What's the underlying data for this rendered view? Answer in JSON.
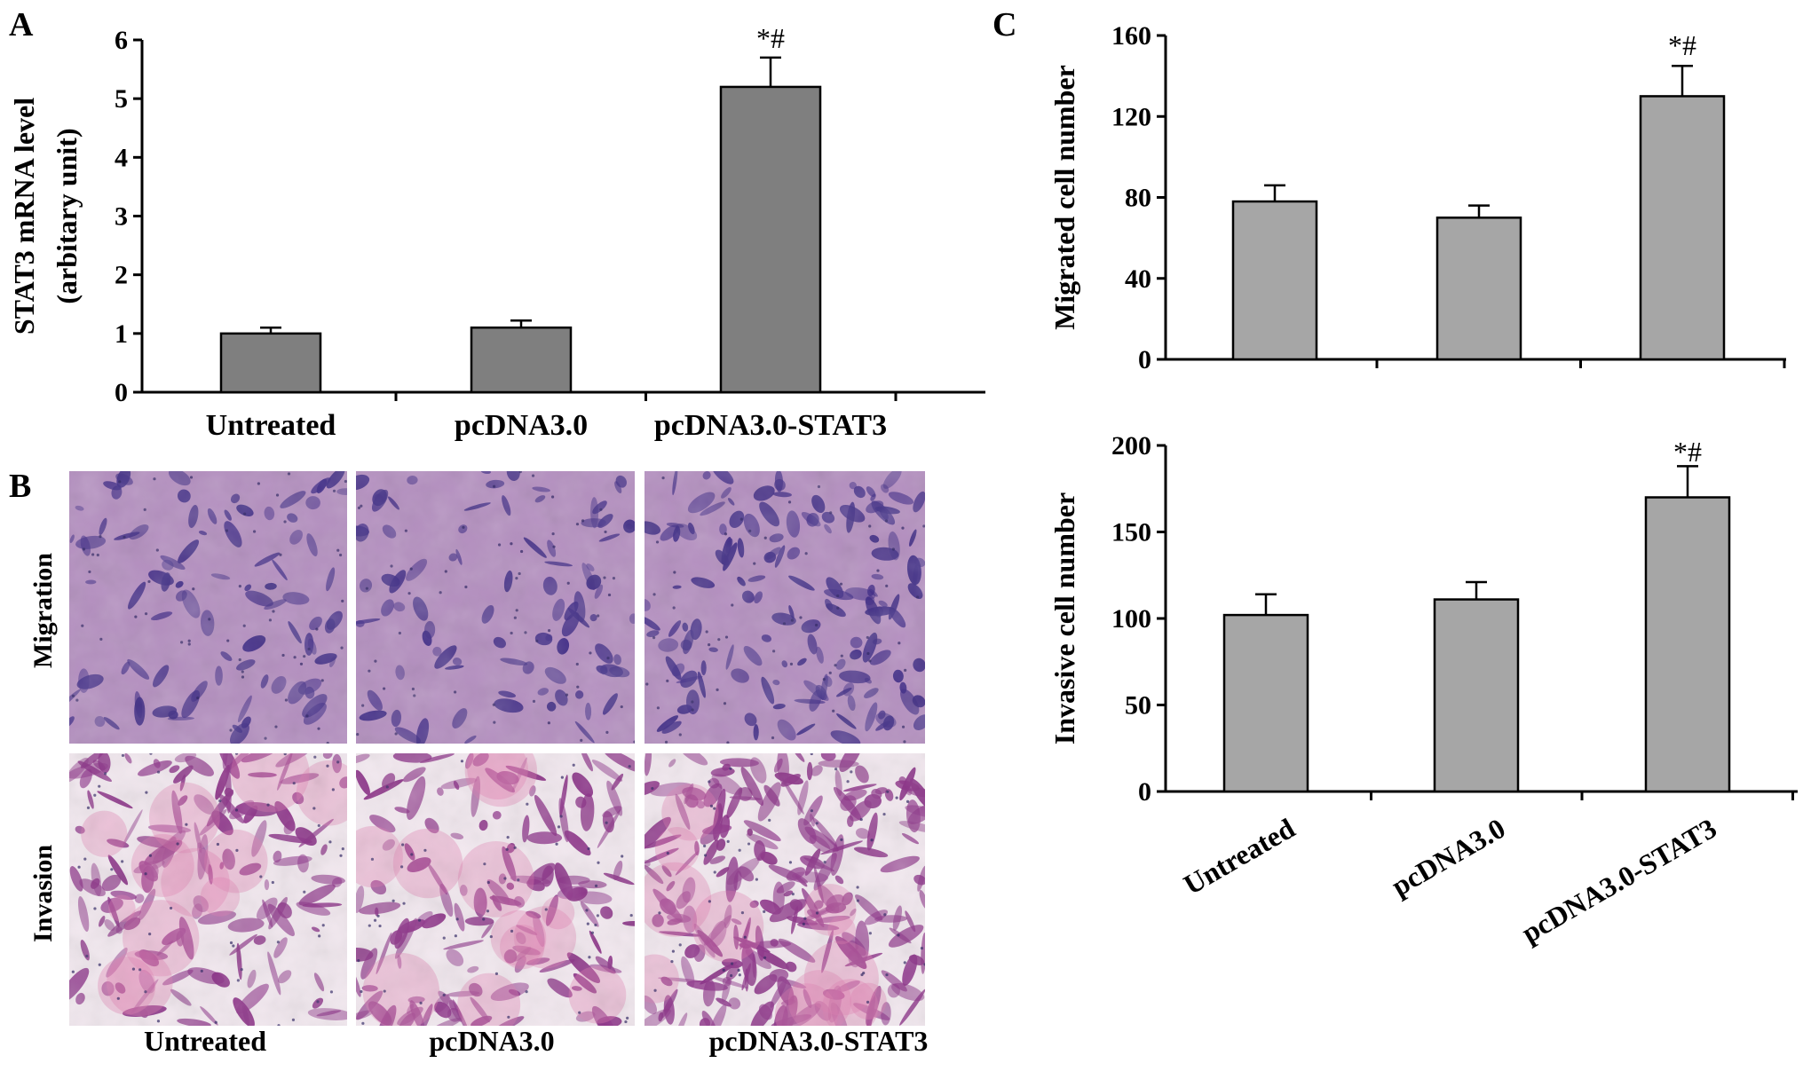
{
  "panels": {
    "A": {
      "letter": "A"
    },
    "B": {
      "letter": "B"
    },
    "C": {
      "letter": "C"
    }
  },
  "micrographs": {
    "row_labels": [
      "Migration",
      "Invasion"
    ],
    "column_labels": [
      "Untreated",
      "pcDNA3.0",
      "pcDNA3.0-STAT3"
    ],
    "stain_colors": {
      "migration_background": "#b48fc0",
      "migration_cells": "#3f2c86",
      "invasion_background": "#f2e8ef",
      "invasion_cells": "#8a2f86"
    }
  },
  "chart_data": [
    {
      "panel": "A",
      "type": "bar",
      "categories": [
        "Untreated",
        "pcDNA3.0",
        "pcDNA3.0-STAT3"
      ],
      "values": [
        1.0,
        1.1,
        5.2
      ],
      "errors": [
        0.1,
        0.12,
        0.5
      ],
      "annotations": [
        "",
        "",
        "*#"
      ],
      "ylabel": "STAT3 mRNA level",
      "ylabel2": "(arbitary unit)",
      "ylim": [
        0,
        6
      ],
      "yticks": [
        0,
        1,
        2,
        3,
        4,
        5,
        6
      ],
      "bar_color": "#7f7f7f",
      "grid": false,
      "legend": "none"
    },
    {
      "panel": "C-top",
      "type": "bar",
      "categories": [
        "Untreated",
        "pcDNA3.0",
        "pcDNA3.0-STAT3"
      ],
      "values": [
        78,
        70,
        130
      ],
      "errors": [
        8,
        6,
        15
      ],
      "annotations": [
        "",
        "",
        "*#"
      ],
      "ylabel": "Migrated cell number",
      "ylim": [
        0,
        160
      ],
      "yticks": [
        0,
        40,
        80,
        120,
        160
      ],
      "bar_color": "#a6a6a6",
      "grid": false,
      "legend": "none"
    },
    {
      "panel": "C-bottom",
      "type": "bar",
      "categories": [
        "Untreated",
        "pcDNA3.0",
        "pcDNA3.0-STAT3"
      ],
      "values": [
        102,
        111,
        170
      ],
      "errors": [
        12,
        10,
        18
      ],
      "annotations": [
        "",
        "",
        "*#"
      ],
      "ylabel": "Invasive cell number",
      "ylim": [
        0,
        200
      ],
      "yticks": [
        0,
        50,
        100,
        150,
        200
      ],
      "bar_color": "#a6a6a6",
      "grid": false,
      "legend": "none"
    }
  ]
}
